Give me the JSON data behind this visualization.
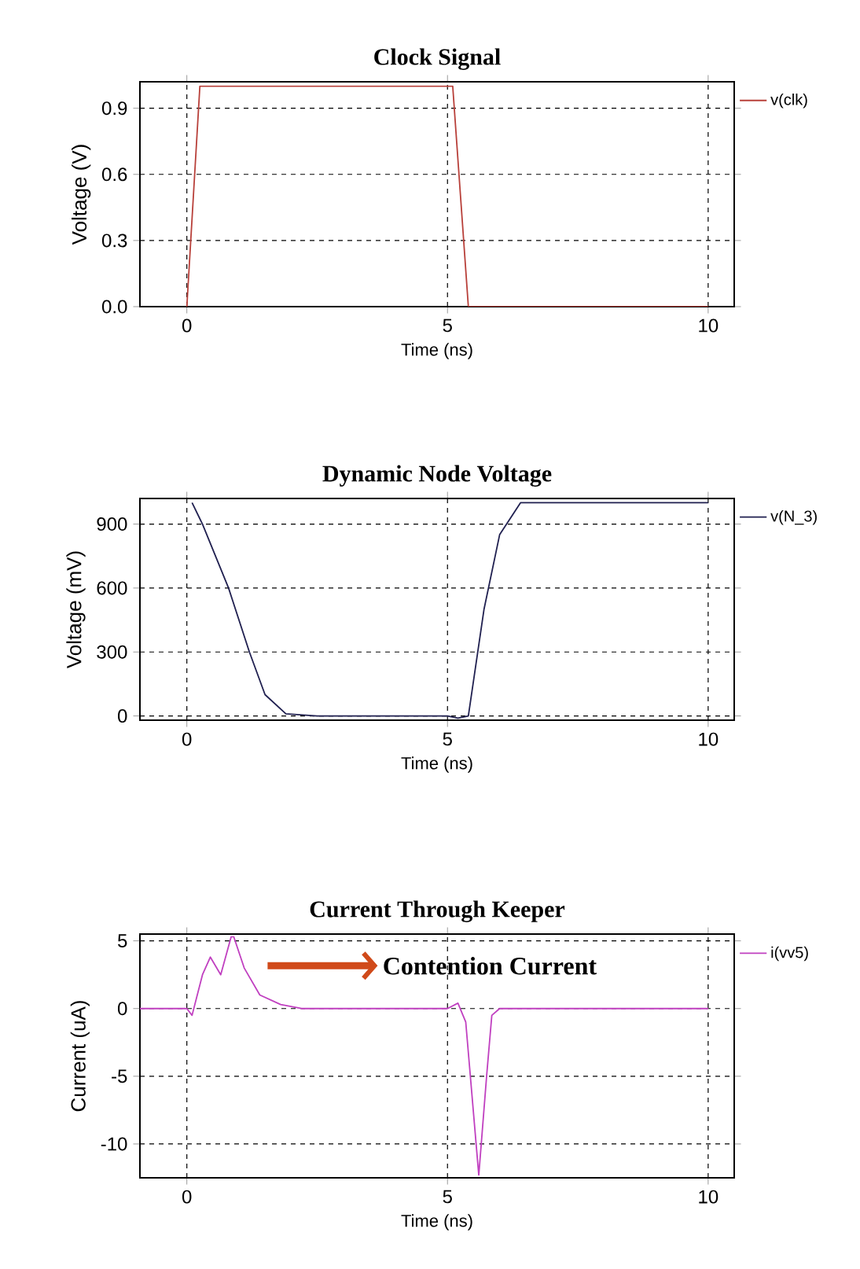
{
  "chart_data": [
    {
      "type": "line",
      "title": "Clock Signal",
      "xlabel": "Time (ns)",
      "ylabel": "Voltage (V)",
      "xlim": [
        -0.9,
        10.5
      ],
      "ylim": [
        0,
        1.02
      ],
      "xticks": [
        0,
        5,
        10
      ],
      "yticks": [
        {
          "value": 0,
          "label": "0.0"
        },
        0.3,
        0.6,
        0.9
      ],
      "grid": true,
      "legend": "right",
      "marker": "none",
      "line_style": "solid",
      "series": [
        {
          "name": "v(clk)",
          "color": "#b8403a",
          "x": [
            0,
            0.25,
            5.1,
            5.4,
            10
          ],
          "values": [
            0,
            1.0,
            1.0,
            0,
            0
          ]
        }
      ]
    },
    {
      "type": "line",
      "title": "Dynamic Node Voltage",
      "xlabel": "Time (ns)",
      "ylabel": "Voltage (mV)",
      "xlim": [
        -0.9,
        10.5
      ],
      "ylim": [
        -20,
        1020
      ],
      "xticks": [
        0,
        5,
        10
      ],
      "yticks": [
        0,
        300,
        600,
        900
      ],
      "grid": true,
      "legend": "right",
      "marker": "none",
      "line_style": "solid",
      "series": [
        {
          "name": "v(N_3)",
          "color": "#202050",
          "x": [
            0.1,
            0.3,
            0.8,
            1.2,
            1.5,
            1.9,
            2.5,
            5.0,
            5.2,
            5.4,
            5.7,
            6.0,
            6.4,
            10
          ],
          "values": [
            1000,
            900,
            600,
            300,
            100,
            10,
            0,
            0,
            -10,
            0,
            500,
            850,
            1000,
            1000
          ]
        }
      ]
    },
    {
      "type": "line",
      "title": "Current Through Keeper",
      "xlabel": "Time (ns)",
      "ylabel": "Current (uA)",
      "xlim": [
        -0.9,
        10.5
      ],
      "ylim": [
        -12.5,
        5.5
      ],
      "xticks": [
        0,
        5,
        10
      ],
      "yticks": [
        -10,
        -5,
        0,
        5
      ],
      "grid": true,
      "legend": "right",
      "marker": "none",
      "line_style": "solid",
      "annotations": [
        "Contention Current"
      ],
      "series": [
        {
          "name": "i(vv5)",
          "color": "#c040c0",
          "x": [
            -0.9,
            0,
            0.1,
            0.3,
            0.45,
            0.65,
            0.85,
            0.9,
            1.1,
            1.4,
            1.8,
            2.2,
            5.0,
            5.2,
            5.35,
            5.6,
            5.75,
            5.85,
            6.0,
            10
          ],
          "values": [
            0,
            0,
            -0.5,
            2.5,
            3.8,
            2.5,
            5.3,
            5.3,
            3,
            1,
            0.3,
            0,
            0,
            0.4,
            -1,
            -12.3,
            -5,
            -0.5,
            0,
            0
          ]
        }
      ]
    }
  ]
}
